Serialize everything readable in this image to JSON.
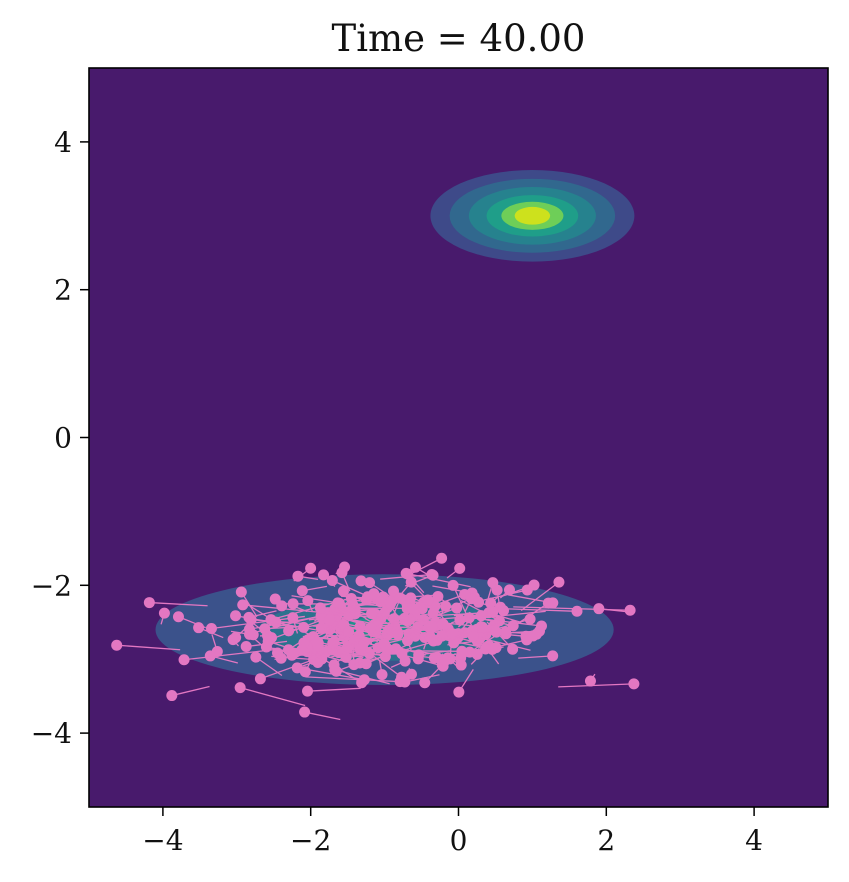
{
  "chart_data": {
    "type": "scatter",
    "title": "Time = 40.00",
    "xlabel": "",
    "ylabel": "",
    "xlim": [
      -5,
      5
    ],
    "ylim": [
      -5,
      5
    ],
    "x_ticks": [
      -4,
      -2,
      0,
      2,
      4
    ],
    "y_ticks": [
      -4,
      -2,
      0,
      2,
      4
    ],
    "x_tick_labels": [
      "−4",
      "−2",
      "0",
      "2",
      "4"
    ],
    "y_tick_labels": [
      "−4",
      "−2",
      "0",
      "2",
      "4"
    ],
    "grid": false,
    "colors": {
      "background": "#481a6c",
      "particles": "#e377c2",
      "frame": "#000000"
    },
    "contours": [
      {
        "center": [
          1.0,
          3.0
        ],
        "levels": [
          {
            "rx": 1.38,
            "ry": 0.62,
            "color": "#3e4a89"
          },
          {
            "rx": 1.12,
            "ry": 0.5,
            "color": "#31688e"
          },
          {
            "rx": 0.86,
            "ry": 0.39,
            "color": "#26828e"
          },
          {
            "rx": 0.62,
            "ry": 0.28,
            "color": "#1f9e89"
          },
          {
            "rx": 0.42,
            "ry": 0.19,
            "color": "#6ece58"
          },
          {
            "rx": 0.24,
            "ry": 0.12,
            "color": "#cde11d"
          }
        ]
      },
      {
        "center": [
          -1.0,
          -2.6
        ],
        "levels": [
          {
            "rx": 3.1,
            "ry": 0.75,
            "color": "#3b528b"
          },
          {
            "rx": 1.7,
            "ry": 0.42,
            "color": "#2c728e"
          },
          {
            "rx": 0.55,
            "ry": 0.18,
            "color": "#21918c"
          }
        ]
      }
    ],
    "particles": {
      "count": 300,
      "target_center": [
        -1.0,
        -2.6
      ],
      "x_spread": 1.9,
      "y_spread": 0.55,
      "arrow_length_min": 0.2,
      "arrow_length_max": 1.3
    }
  }
}
